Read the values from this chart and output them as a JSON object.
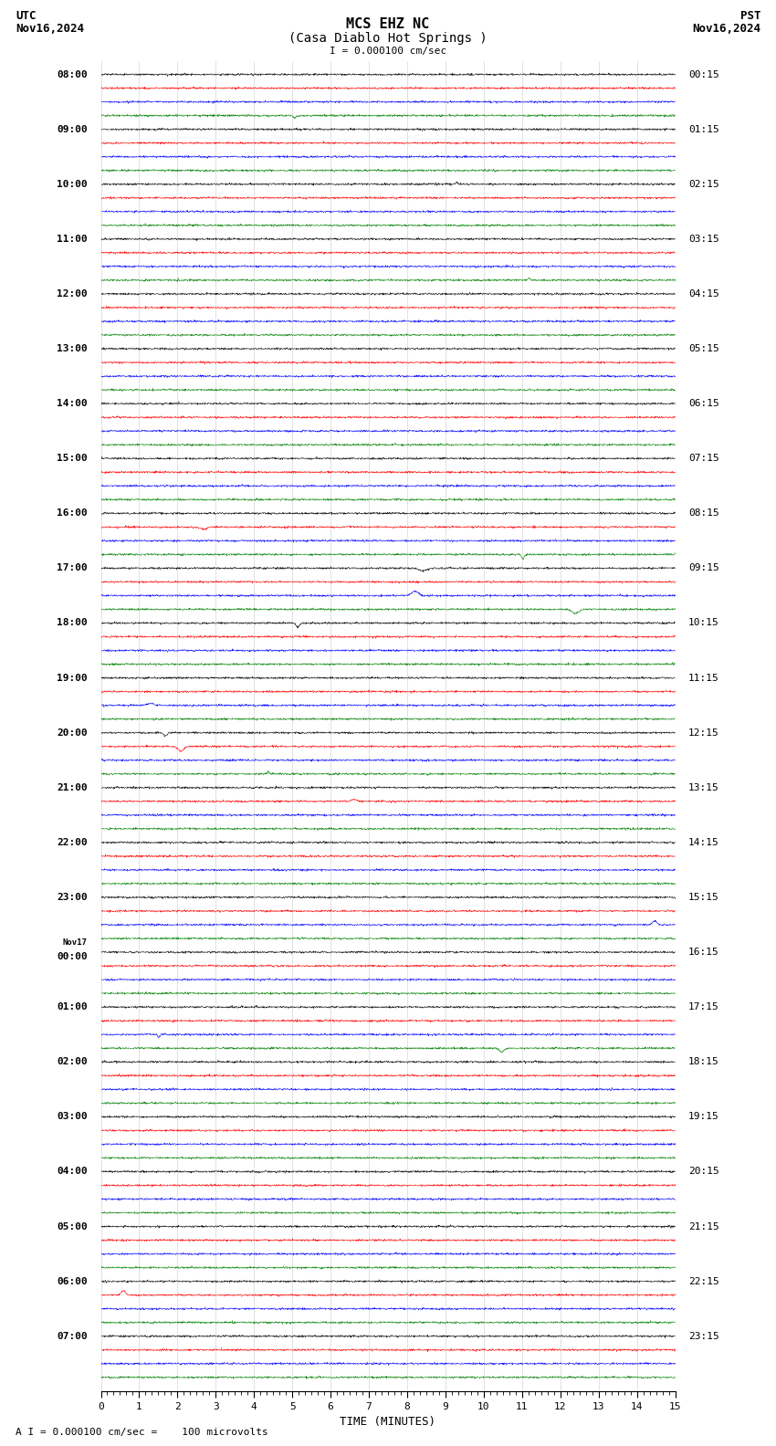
{
  "title_line1": "MCS EHZ NC",
  "title_line2": "(Casa Diablo Hot Springs )",
  "scale_label": "I = 0.000100 cm/sec",
  "utc_label": "UTC",
  "utc_date": "Nov16,2024",
  "pst_label": "PST",
  "pst_date": "Nov16,2024",
  "xlabel": "TIME (MINUTES)",
  "bottom_label": "A I = 0.000100 cm/sec =    100 microvolts",
  "x_min": 0,
  "x_max": 15,
  "x_ticks": [
    0,
    1,
    2,
    3,
    4,
    5,
    6,
    7,
    8,
    9,
    10,
    11,
    12,
    13,
    14,
    15
  ],
  "bg_color": "#ffffff",
  "trace_colors": [
    "black",
    "red",
    "blue",
    "green"
  ],
  "font_family": "monospace",
  "title_fontsize": 11,
  "label_fontsize": 9,
  "tick_fontsize": 8,
  "trace_amplitude": 0.3,
  "noise_scale": 0.12,
  "seed": 42,
  "num_groups": 24,
  "utc_labels": [
    "08:00",
    "09:00",
    "10:00",
    "11:00",
    "12:00",
    "13:00",
    "14:00",
    "15:00",
    "16:00",
    "17:00",
    "18:00",
    "19:00",
    "20:00",
    "21:00",
    "22:00",
    "23:00",
    "00:00",
    "01:00",
    "02:00",
    "03:00",
    "04:00",
    "05:00",
    "06:00",
    "07:00"
  ],
  "pst_labels": [
    "00:15",
    "01:15",
    "02:15",
    "03:15",
    "04:15",
    "05:15",
    "06:15",
    "07:15",
    "08:15",
    "09:15",
    "10:15",
    "11:15",
    "12:15",
    "13:15",
    "14:15",
    "15:15",
    "16:15",
    "17:15",
    "18:15",
    "19:15",
    "20:15",
    "21:15",
    "22:15",
    "23:15"
  ],
  "nov17_index": 16
}
